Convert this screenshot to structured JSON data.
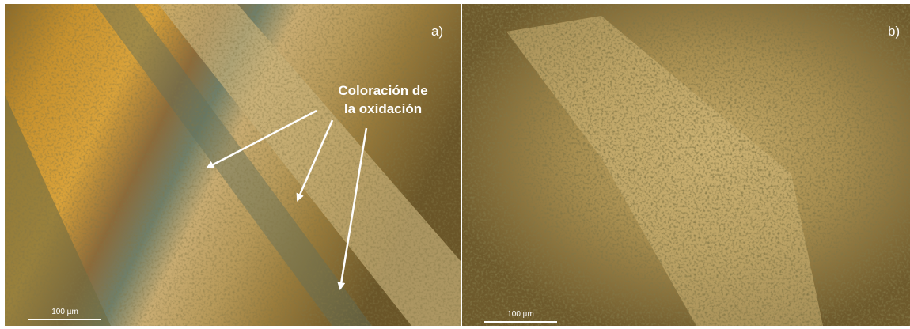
{
  "panels": [
    {
      "label": "a)",
      "annotation": [
        "Coloración de",
        "la oxidación"
      ],
      "scale_bar": "100 µm"
    },
    {
      "label": "b)",
      "scale_bar": "100 µm"
    }
  ]
}
